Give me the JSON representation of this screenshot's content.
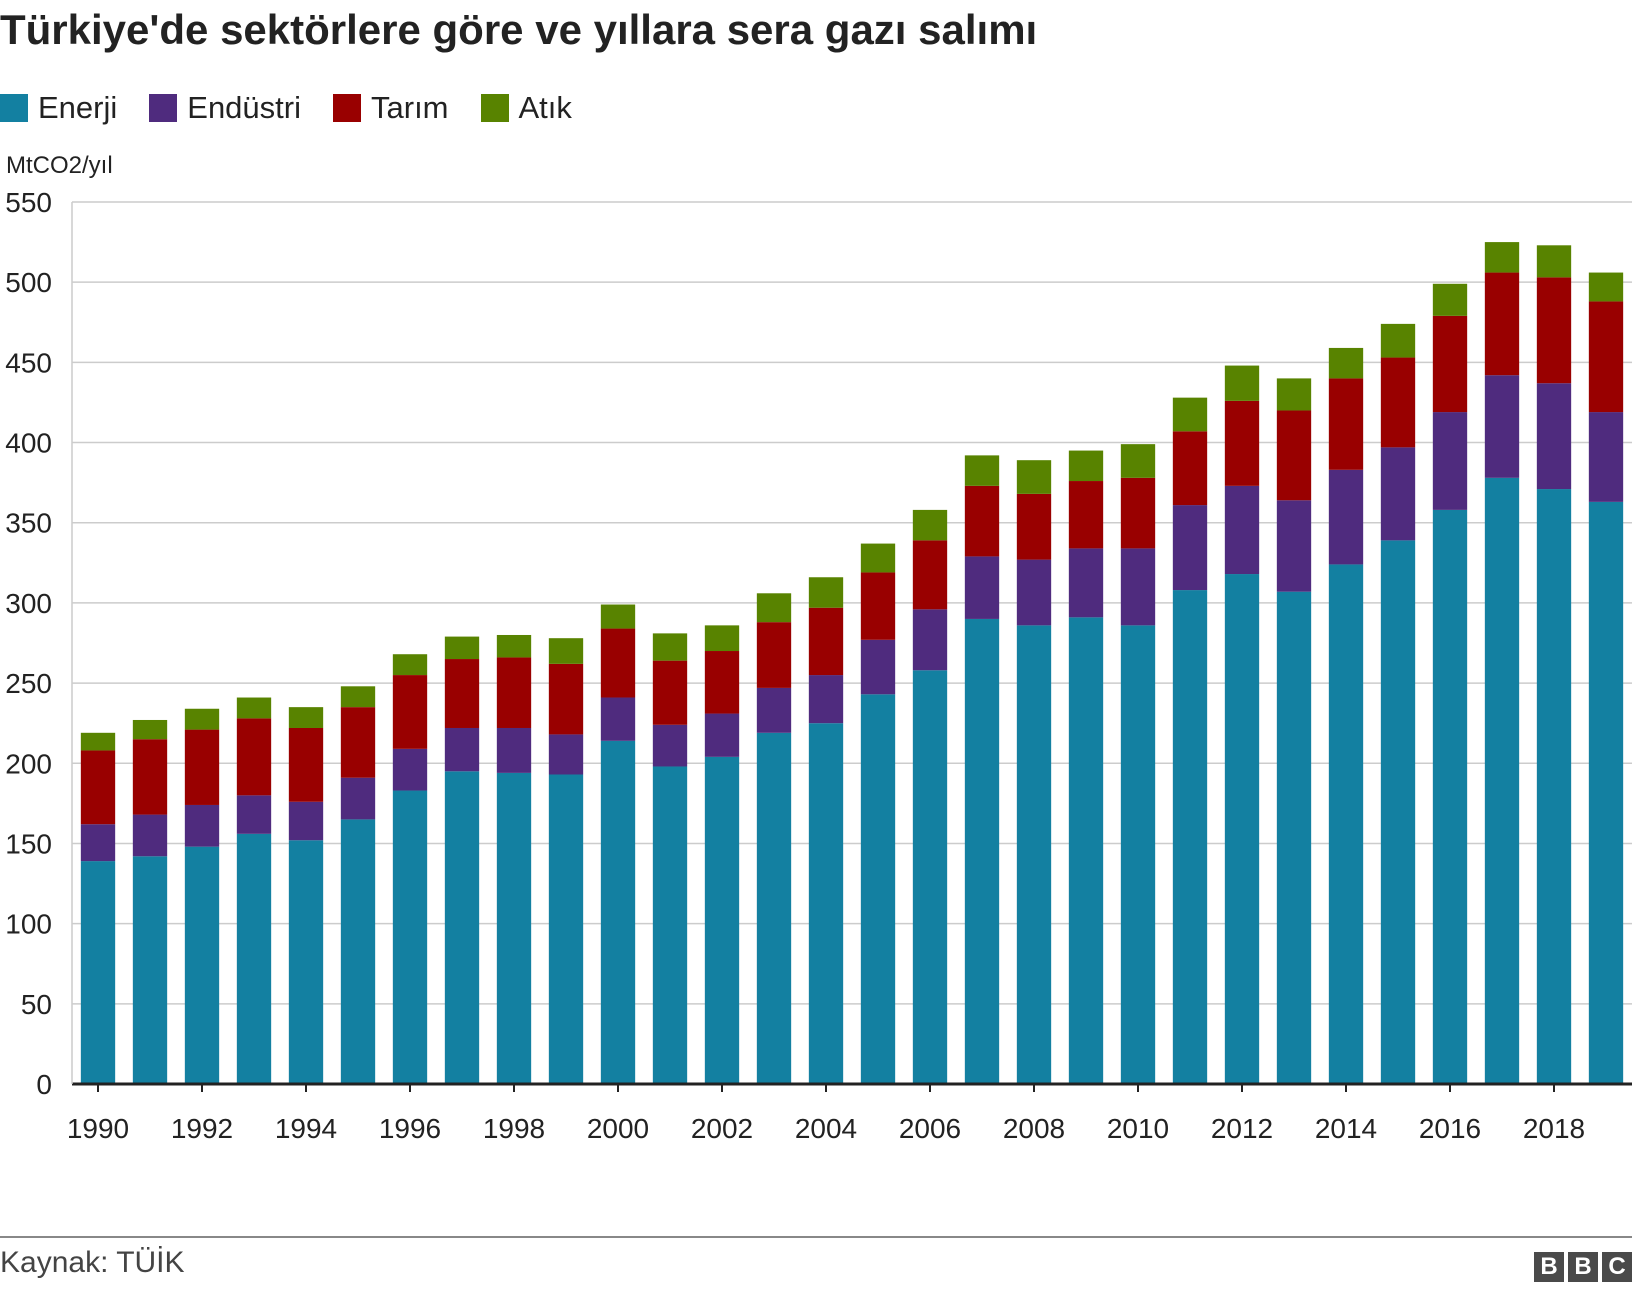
{
  "title": "Türkiye'de sektörlere göre ve yıllara sera gazı salımı",
  "unit_label": "MtCO2/yıl",
  "source": "Kaynak: TÜİK",
  "brand": {
    "letters": [
      "B",
      "B",
      "C"
    ]
  },
  "colors": {
    "Enerji": "#1380a1",
    "Endüstri": "#4f2b7e",
    "Tarım": "#990000",
    "Atık": "#588300",
    "grid": "#cccccc",
    "axis": "#222222"
  },
  "chart_data": {
    "type": "bar",
    "stacked": true,
    "categories": [
      "1990",
      "1991",
      "1992",
      "1993",
      "1994",
      "1995",
      "1996",
      "1997",
      "1998",
      "1999",
      "2000",
      "2001",
      "2002",
      "2003",
      "2004",
      "2005",
      "2006",
      "2007",
      "2008",
      "2009",
      "2010",
      "2011",
      "2012",
      "2013",
      "2014",
      "2015",
      "2016",
      "2017",
      "2018",
      "2019"
    ],
    "x_tick_labels": [
      "1990",
      "1992",
      "1994",
      "1996",
      "1998",
      "2000",
      "2002",
      "2004",
      "2006",
      "2008",
      "2010",
      "2012",
      "2014",
      "2016",
      "2018"
    ],
    "series": [
      {
        "name": "Enerji",
        "values": [
          139,
          142,
          148,
          156,
          152,
          165,
          183,
          195,
          194,
          193,
          214,
          198,
          204,
          219,
          225,
          243,
          258,
          290,
          286,
          291,
          286,
          308,
          318,
          307,
          324,
          339,
          358,
          378,
          371,
          363
        ]
      },
      {
        "name": "Endüstri",
        "values": [
          23,
          26,
          26,
          24,
          24,
          26,
          26,
          27,
          28,
          25,
          27,
          26,
          27,
          28,
          30,
          34,
          38,
          39,
          41,
          43,
          48,
          53,
          55,
          57,
          59,
          58,
          61,
          64,
          66,
          56
        ]
      },
      {
        "name": "Tarım",
        "values": [
          46,
          47,
          47,
          48,
          46,
          44,
          46,
          43,
          44,
          44,
          43,
          40,
          39,
          41,
          42,
          42,
          43,
          44,
          41,
          42,
          44,
          46,
          53,
          56,
          57,
          56,
          60,
          64,
          66,
          69
        ]
      },
      {
        "name": "Atık",
        "values": [
          11,
          12,
          13,
          13,
          13,
          13,
          13,
          14,
          14,
          16,
          15,
          17,
          16,
          18,
          19,
          18,
          19,
          19,
          21,
          19,
          21,
          21,
          22,
          20,
          19,
          21,
          20,
          19,
          20,
          18
        ]
      }
    ],
    "ylim": [
      0,
      550
    ],
    "yticks": [
      0,
      50,
      100,
      150,
      200,
      250,
      300,
      350,
      400,
      450,
      500,
      550
    ],
    "ylabel": "MtCO2/yıl",
    "xlabel": "",
    "grid": true,
    "legend_position": "top-left"
  }
}
